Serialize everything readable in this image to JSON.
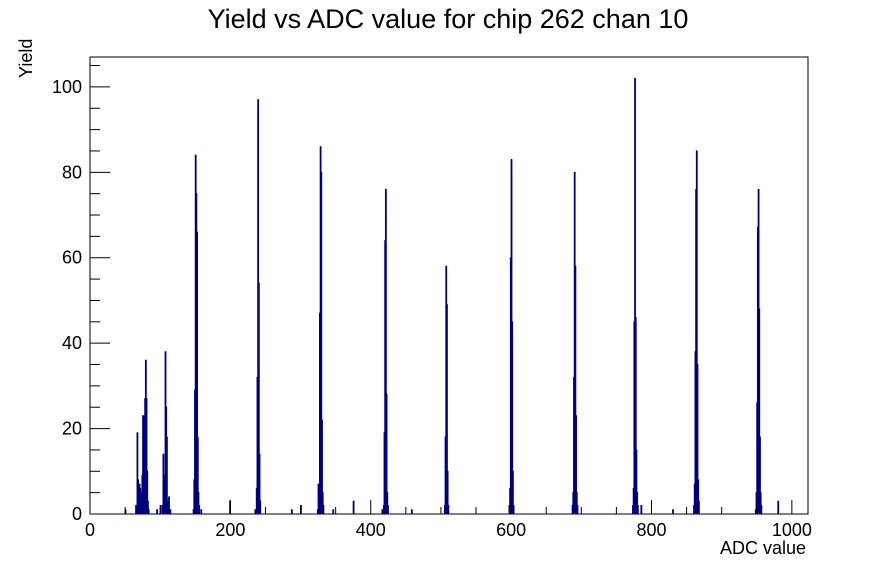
{
  "chart_data": {
    "type": "bar",
    "title": "Yield vs ADC value for chip 262 chan 10",
    "xlabel": "ADC value",
    "ylabel": "Yield",
    "xlim": [
      0,
      1023
    ],
    "ylim": [
      0,
      107
    ],
    "x_ticks": [
      0,
      200,
      400,
      600,
      800,
      1000
    ],
    "y_ticks": [
      0,
      20,
      40,
      60,
      80,
      100
    ],
    "grid": false,
    "legend": "none",
    "bar_color": "#00007f",
    "bins": [
      {
        "x": 50,
        "y": 1
      },
      {
        "x": 65,
        "y": 2
      },
      {
        "x": 67,
        "y": 19
      },
      {
        "x": 68,
        "y": 8
      },
      {
        "x": 69,
        "y": 6
      },
      {
        "x": 70,
        "y": 7
      },
      {
        "x": 71,
        "y": 6
      },
      {
        "x": 72,
        "y": 3
      },
      {
        "x": 73,
        "y": 5
      },
      {
        "x": 74,
        "y": 9
      },
      {
        "x": 75,
        "y": 23
      },
      {
        "x": 76,
        "y": 8
      },
      {
        "x": 77,
        "y": 23
      },
      {
        "x": 78,
        "y": 27
      },
      {
        "x": 79,
        "y": 36
      },
      {
        "x": 80,
        "y": 27
      },
      {
        "x": 81,
        "y": 10
      },
      {
        "x": 82,
        "y": 3
      },
      {
        "x": 83,
        "y": 1
      },
      {
        "x": 95,
        "y": 1
      },
      {
        "x": 100,
        "y": 2
      },
      {
        "x": 103,
        "y": 2
      },
      {
        "x": 104,
        "y": 14
      },
      {
        "x": 105,
        "y": 9
      },
      {
        "x": 106,
        "y": 6
      },
      {
        "x": 107,
        "y": 38
      },
      {
        "x": 108,
        "y": 25
      },
      {
        "x": 109,
        "y": 18
      },
      {
        "x": 110,
        "y": 3
      },
      {
        "x": 111,
        "y": 2
      },
      {
        "x": 112,
        "y": 4
      },
      {
        "x": 114,
        "y": 1
      },
      {
        "x": 147,
        "y": 1
      },
      {
        "x": 148,
        "y": 8
      },
      {
        "x": 149,
        "y": 29
      },
      {
        "x": 150,
        "y": 84
      },
      {
        "x": 151,
        "y": 75
      },
      {
        "x": 152,
        "y": 66
      },
      {
        "x": 153,
        "y": 18
      },
      {
        "x": 154,
        "y": 5
      },
      {
        "x": 155,
        "y": 2
      },
      {
        "x": 158,
        "y": 1
      },
      {
        "x": 199,
        "y": 3
      },
      {
        "x": 235,
        "y": 1
      },
      {
        "x": 237,
        "y": 6
      },
      {
        "x": 238,
        "y": 32
      },
      {
        "x": 239,
        "y": 97
      },
      {
        "x": 240,
        "y": 54
      },
      {
        "x": 241,
        "y": 14
      },
      {
        "x": 242,
        "y": 3
      },
      {
        "x": 287,
        "y": 1
      },
      {
        "x": 300,
        "y": 2
      },
      {
        "x": 324,
        "y": 1
      },
      {
        "x": 325,
        "y": 7
      },
      {
        "x": 326,
        "y": 5
      },
      {
        "x": 327,
        "y": 47
      },
      {
        "x": 328,
        "y": 86
      },
      {
        "x": 329,
        "y": 80
      },
      {
        "x": 330,
        "y": 22
      },
      {
        "x": 331,
        "y": 5
      },
      {
        "x": 332,
        "y": 2
      },
      {
        "x": 346,
        "y": 1
      },
      {
        "x": 375,
        "y": 3
      },
      {
        "x": 416,
        "y": 1
      },
      {
        "x": 418,
        "y": 2
      },
      {
        "x": 419,
        "y": 19
      },
      {
        "x": 420,
        "y": 64
      },
      {
        "x": 421,
        "y": 76
      },
      {
        "x": 422,
        "y": 28
      },
      {
        "x": 423,
        "y": 5
      },
      {
        "x": 424,
        "y": 2
      },
      {
        "x": 458,
        "y": 1
      },
      {
        "x": 505,
        "y": 2
      },
      {
        "x": 506,
        "y": 18
      },
      {
        "x": 507,
        "y": 58
      },
      {
        "x": 508,
        "y": 49
      },
      {
        "x": 509,
        "y": 10
      },
      {
        "x": 510,
        "y": 2
      },
      {
        "x": 597,
        "y": 2
      },
      {
        "x": 598,
        "y": 6
      },
      {
        "x": 599,
        "y": 60
      },
      {
        "x": 600,
        "y": 83
      },
      {
        "x": 601,
        "y": 45
      },
      {
        "x": 602,
        "y": 10
      },
      {
        "x": 603,
        "y": 2
      },
      {
        "x": 687,
        "y": 2
      },
      {
        "x": 688,
        "y": 5
      },
      {
        "x": 689,
        "y": 32
      },
      {
        "x": 690,
        "y": 80
      },
      {
        "x": 691,
        "y": 58
      },
      {
        "x": 692,
        "y": 23
      },
      {
        "x": 693,
        "y": 5
      },
      {
        "x": 694,
        "y": 2
      },
      {
        "x": 773,
        "y": 2
      },
      {
        "x": 774,
        "y": 6
      },
      {
        "x": 775,
        "y": 45
      },
      {
        "x": 776,
        "y": 102
      },
      {
        "x": 777,
        "y": 46
      },
      {
        "x": 778,
        "y": 15
      },
      {
        "x": 779,
        "y": 5
      },
      {
        "x": 780,
        "y": 2
      },
      {
        "x": 785,
        "y": 2
      },
      {
        "x": 830,
        "y": 1
      },
      {
        "x": 860,
        "y": 2
      },
      {
        "x": 861,
        "y": 7
      },
      {
        "x": 862,
        "y": 38
      },
      {
        "x": 863,
        "y": 76
      },
      {
        "x": 864,
        "y": 85
      },
      {
        "x": 865,
        "y": 35
      },
      {
        "x": 866,
        "y": 8
      },
      {
        "x": 867,
        "y": 3
      },
      {
        "x": 948,
        "y": 1
      },
      {
        "x": 949,
        "y": 5
      },
      {
        "x": 950,
        "y": 26
      },
      {
        "x": 951,
        "y": 67
      },
      {
        "x": 952,
        "y": 76
      },
      {
        "x": 953,
        "y": 48
      },
      {
        "x": 954,
        "y": 18
      },
      {
        "x": 955,
        "y": 5
      },
      {
        "x": 956,
        "y": 2
      },
      {
        "x": 980,
        "y": 3
      }
    ]
  }
}
